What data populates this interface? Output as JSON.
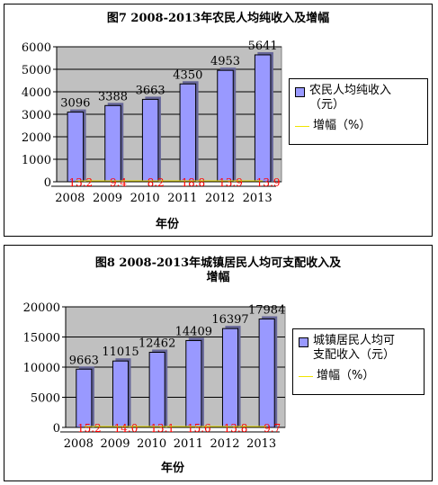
{
  "chart_data": [
    {
      "type": "bar",
      "title": "图7 2008-2013年农民人均纯收入及增幅",
      "xlabel": "年份",
      "ylabel": "",
      "categories": [
        "2008",
        "2009",
        "2010",
        "2011",
        "2012",
        "2013"
      ],
      "ylim": [
        0,
        6000
      ],
      "yticks": [
        "0",
        "1000",
        "2000",
        "3000",
        "4000",
        "5000",
        "6000"
      ],
      "series": [
        {
          "name": "农民人均纯收入（元）",
          "type": "bar",
          "values": [
            3096,
            3388,
            3663,
            4350,
            4953,
            5641
          ],
          "color": "#9999ff"
        },
        {
          "name": "增幅（%）",
          "type": "line",
          "values": [
            13.2,
            9.4,
            8.2,
            18.8,
            13.9,
            13.9
          ],
          "labels": [
            "13.2",
            "9.4",
            "8.2",
            "18.8",
            "13.9",
            "13.9"
          ],
          "color": "#f0e400",
          "label_color": "#ff0000"
        }
      ],
      "grid": true,
      "legend_position": "right",
      "plot_background": "#c0c0c0"
    },
    {
      "type": "bar",
      "title": "图8 2008-2013年城镇居民人均可支配收入及增幅",
      "xlabel": "年份",
      "ylabel": "",
      "categories": [
        "2008",
        "2009",
        "2010",
        "2011",
        "2012",
        "2013"
      ],
      "ylim": [
        0,
        20000
      ],
      "yticks": [
        "0",
        "5000",
        "10000",
        "15000",
        "20000"
      ],
      "series": [
        {
          "name": "城镇居民人均可支配收入（元）",
          "type": "bar",
          "values": [
            9663,
            11015,
            12462,
            14409,
            16397,
            17984
          ],
          "color": "#9999ff"
        },
        {
          "name": "增幅（%）",
          "type": "line",
          "values": [
            15.2,
            14.0,
            13.1,
            15.6,
            13.8,
            9.7
          ],
          "labels": [
            "15.2",
            "14.0",
            "13.1",
            "15.6",
            "13.8",
            "9.7"
          ],
          "color": "#f0e400",
          "label_color": "#ff0000"
        }
      ],
      "grid": true,
      "legend_position": "right",
      "plot_background": "#c0c0c0"
    }
  ],
  "legend_text": {
    "chart1_bar": "农民人均纯收入\n（元）",
    "chart1_line": "增幅（%）",
    "chart2_bar": "城镇居民人均可\n支配收入（元）",
    "chart2_line": "增幅（%）"
  },
  "titles": {
    "chart1": "图7 2008-2013年农民人均纯收入及增幅",
    "chart2_line1": "图8 2008-2013年城镇居民人均可支配收入及",
    "chart2_line2": "增幅"
  }
}
